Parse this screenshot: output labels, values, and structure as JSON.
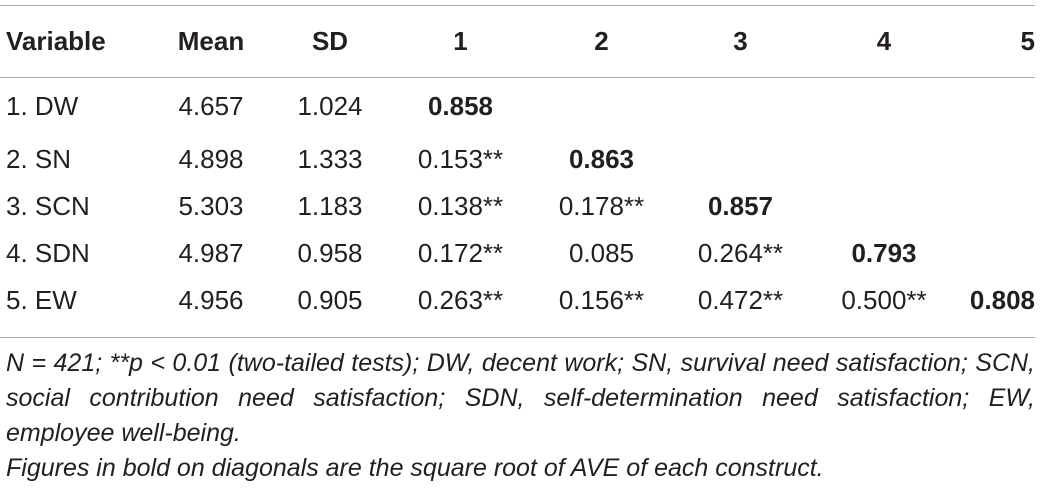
{
  "table": {
    "headers": [
      "Variable",
      "Mean",
      "SD",
      "1",
      "2",
      "3",
      "4",
      "5"
    ],
    "rows": [
      [
        "1. DW",
        "4.657",
        "1.024",
        "0.858",
        "",
        "",
        "",
        ""
      ],
      [
        "2. SN",
        "4.898",
        "1.333",
        "0.153**",
        "0.863",
        "",
        "",
        ""
      ],
      [
        "3. SCN",
        "5.303",
        "1.183",
        "0.138**",
        "0.178**",
        "0.857",
        "",
        ""
      ],
      [
        "4. SDN",
        "4.987",
        "0.958",
        "0.172**",
        "0.085",
        "0.264**",
        "0.793",
        ""
      ],
      [
        "5. EW",
        "4.956",
        "0.905",
        "0.263**",
        "0.156**",
        "0.472**",
        "0.500**",
        "0.808"
      ]
    ]
  },
  "notes": {
    "abbreviations": "N = 421; **p < 0.01 (two-tailed tests); DW, decent work; SN, survival need satisfaction; SCN, social contribution need satisfaction; SDN, self-determination need satisfaction; EW, employee well-being.",
    "bold_explanation": "Figures in bold on diagonals are the square root of AVE of each construct."
  }
}
